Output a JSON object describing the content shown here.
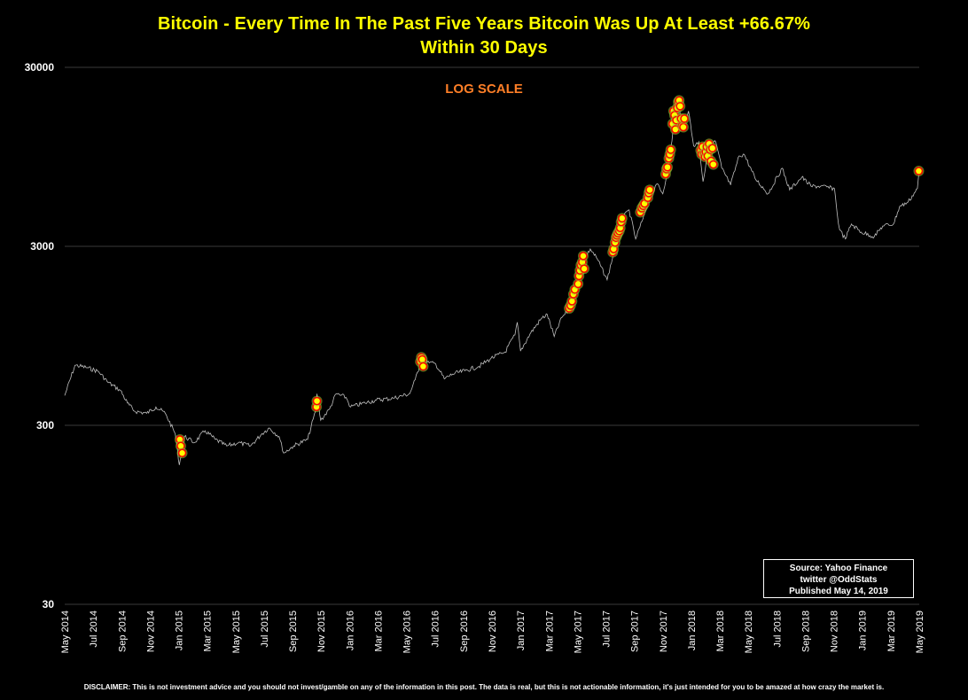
{
  "chart_data": {
    "type": "line",
    "title": "Bitcoin - Every Time In The Past Five Years Bitcoin Was Up At Least +66.67%",
    "subtitle": "Within 30 Days",
    "annotation": "LOG SCALE",
    "y_scale": "log",
    "ylim": [
      30,
      30000
    ],
    "y_ticks": [
      "30000",
      "3000",
      "300",
      "30"
    ],
    "x_ticks": [
      "May 2014",
      "Jul 2014",
      "Sep 2014",
      "Nov 2014",
      "Jan 2015",
      "Mar 2015",
      "May 2015",
      "Jul 2015",
      "Sep 2015",
      "Nov 2015",
      "Jan 2016",
      "Mar 2016",
      "May 2016",
      "Jul 2016",
      "Sep 2016",
      "Nov 2016",
      "Jan 2017",
      "Mar 2017",
      "May 2017",
      "Jul 2017",
      "Sep 2017",
      "Nov 2017",
      "Jan 2018",
      "Mar 2018",
      "May 2018",
      "Jul 2018",
      "Sep 2018",
      "Nov 2018",
      "Jan 2019",
      "Mar 2019",
      "May 2019"
    ],
    "xlim": [
      "2014-05-14",
      "2019-05-14"
    ],
    "grid": "horizontal",
    "colors": {
      "price_line": "#bfbfbf",
      "highlight_fill": "#ffff00",
      "highlight_ring": "#ff0000",
      "highlight_glow": "#9acd32",
      "title": "#ffff00",
      "annotation": "#ff7f27"
    },
    "series": [
      {
        "values": [
          [
            "2014-05-14",
            440
          ],
          [
            "2014-06-05",
            650
          ],
          [
            "2014-07-01",
            630
          ],
          [
            "2014-07-25",
            600
          ],
          [
            "2014-08-15",
            520
          ],
          [
            "2014-09-10",
            470
          ],
          [
            "2014-09-25",
            400
          ],
          [
            "2014-10-10",
            360
          ],
          [
            "2014-11-05",
            350
          ],
          [
            "2014-11-25",
            380
          ],
          [
            "2014-12-15",
            350
          ],
          [
            "2015-01-05",
            270
          ],
          [
            "2015-01-14",
            180
          ],
          [
            "2015-01-25",
            260
          ],
          [
            "2015-02-15",
            240
          ],
          [
            "2015-03-10",
            280
          ],
          [
            "2015-04-01",
            250
          ],
          [
            "2015-04-25",
            230
          ],
          [
            "2015-05-20",
            240
          ],
          [
            "2015-06-15",
            230
          ],
          [
            "2015-07-10",
            270
          ],
          [
            "2015-07-25",
            290
          ],
          [
            "2015-08-15",
            260
          ],
          [
            "2015-08-25",
            210
          ],
          [
            "2015-09-15",
            230
          ],
          [
            "2015-10-15",
            250
          ],
          [
            "2015-11-01",
            360
          ],
          [
            "2015-11-04",
            450
          ],
          [
            "2015-11-12",
            320
          ],
          [
            "2015-12-01",
            370
          ],
          [
            "2015-12-15",
            450
          ],
          [
            "2016-01-05",
            430
          ],
          [
            "2016-01-15",
            380
          ],
          [
            "2016-02-15",
            400
          ],
          [
            "2016-03-10",
            415
          ],
          [
            "2016-04-15",
            425
          ],
          [
            "2016-05-20",
            450
          ],
          [
            "2016-06-01",
            540
          ],
          [
            "2016-06-17",
            730
          ],
          [
            "2016-07-01",
            670
          ],
          [
            "2016-07-15",
            660
          ],
          [
            "2016-08-02",
            545
          ],
          [
            "2016-08-20",
            580
          ],
          [
            "2016-09-15",
            605
          ],
          [
            "2016-10-15",
            640
          ],
          [
            "2016-11-10",
            710
          ],
          [
            "2016-12-10",
            770
          ],
          [
            "2016-12-31",
            960
          ],
          [
            "2017-01-05",
            1130
          ],
          [
            "2017-01-12",
            780
          ],
          [
            "2017-02-01",
            970
          ],
          [
            "2017-02-25",
            1180
          ],
          [
            "2017-03-10",
            1250
          ],
          [
            "2017-03-25",
            940
          ],
          [
            "2017-04-10",
            1200
          ],
          [
            "2017-04-28",
            1350
          ],
          [
            "2017-05-10",
            1750
          ],
          [
            "2017-05-25",
            2450
          ],
          [
            "2017-06-10",
            2900
          ],
          [
            "2017-06-25",
            2550
          ],
          [
            "2017-07-16",
            1950
          ],
          [
            "2017-07-30",
            2750
          ],
          [
            "2017-08-15",
            4200
          ],
          [
            "2017-09-01",
            4800
          ],
          [
            "2017-09-15",
            3300
          ],
          [
            "2017-10-01",
            4300
          ],
          [
            "2017-10-15",
            5600
          ],
          [
            "2017-11-01",
            6700
          ],
          [
            "2017-11-12",
            5900
          ],
          [
            "2017-11-25",
            8700
          ],
          [
            "2017-12-08",
            16000
          ],
          [
            "2017-12-17",
            19300
          ],
          [
            "2017-12-22",
            13500
          ],
          [
            "2018-01-06",
            17100
          ],
          [
            "2018-01-17",
            10900
          ],
          [
            "2018-01-28",
            11500
          ],
          [
            "2018-02-06",
            6900
          ],
          [
            "2018-02-20",
            11200
          ],
          [
            "2018-03-05",
            11500
          ],
          [
            "2018-03-18",
            8200
          ],
          [
            "2018-04-06",
            6600
          ],
          [
            "2018-04-24",
            9600
          ],
          [
            "2018-05-05",
            9800
          ],
          [
            "2018-05-28",
            7200
          ],
          [
            "2018-06-25",
            5900
          ],
          [
            "2018-07-25",
            8200
          ],
          [
            "2018-08-10",
            6200
          ],
          [
            "2018-09-05",
            7300
          ],
          [
            "2018-09-25",
            6500
          ],
          [
            "2018-10-15",
            6500
          ],
          [
            "2018-11-14",
            6300
          ],
          [
            "2018-11-20",
            4500
          ],
          [
            "2018-11-25",
            3700
          ],
          [
            "2018-12-07",
            3300
          ],
          [
            "2018-12-20",
            4000
          ],
          [
            "2019-01-10",
            3600
          ],
          [
            "2019-02-07",
            3400
          ],
          [
            "2019-02-25",
            3900
          ],
          [
            "2019-03-20",
            4000
          ],
          [
            "2019-04-02",
            5000
          ],
          [
            "2019-04-20",
            5300
          ],
          [
            "2019-05-10",
            6300
          ],
          [
            "2019-05-14",
            8000
          ]
        ]
      }
    ],
    "highlight_points": [
      [
        "2015-01-15",
        250
      ],
      [
        "2015-01-17",
        230
      ],
      [
        "2015-01-20",
        210
      ],
      [
        "2015-11-03",
        380
      ],
      [
        "2015-11-04",
        410
      ],
      [
        "2016-06-12",
        680
      ],
      [
        "2016-06-14",
        720
      ],
      [
        "2016-06-16",
        700
      ],
      [
        "2016-06-18",
        640
      ],
      [
        "2017-04-26",
        1350
      ],
      [
        "2017-04-29",
        1400
      ],
      [
        "2017-05-02",
        1480
      ],
      [
        "2017-05-05",
        1620
      ],
      [
        "2017-05-08",
        1720
      ],
      [
        "2017-05-15",
        1850
      ],
      [
        "2017-05-17",
        2050
      ],
      [
        "2017-05-19",
        2200
      ],
      [
        "2017-05-21",
        2350
      ],
      [
        "2017-05-24",
        2450
      ],
      [
        "2017-05-26",
        2650
      ],
      [
        "2017-05-28",
        2250
      ],
      [
        "2017-07-28",
        2780
      ],
      [
        "2017-07-30",
        2900
      ],
      [
        "2017-08-02",
        3150
      ],
      [
        "2017-08-04",
        3350
      ],
      [
        "2017-08-06",
        3450
      ],
      [
        "2017-08-08",
        3550
      ],
      [
        "2017-08-11",
        3650
      ],
      [
        "2017-08-13",
        3800
      ],
      [
        "2017-08-15",
        4100
      ],
      [
        "2017-08-17",
        4300
      ],
      [
        "2017-09-25",
        4650
      ],
      [
        "2017-09-28",
        4900
      ],
      [
        "2017-10-01",
        5050
      ],
      [
        "2017-10-04",
        5200
      ],
      [
        "2017-10-11",
        5600
      ],
      [
        "2017-10-13",
        5950
      ],
      [
        "2017-10-15",
        6200
      ],
      [
        "2017-11-18",
        7600
      ],
      [
        "2017-11-20",
        8100
      ],
      [
        "2017-11-22",
        8300
      ],
      [
        "2017-11-25",
        9300
      ],
      [
        "2017-11-27",
        9800
      ],
      [
        "2017-11-29",
        10400
      ],
      [
        "2017-12-03",
        14500
      ],
      [
        "2017-12-05",
        17100
      ],
      [
        "2017-12-07",
        16200
      ],
      [
        "2017-12-09",
        13500
      ],
      [
        "2017-12-11",
        15200
      ],
      [
        "2017-12-13",
        17800
      ],
      [
        "2017-12-15",
        19200
      ],
      [
        "2017-12-17",
        19600
      ],
      [
        "2017-12-19",
        18200
      ],
      [
        "2017-12-21",
        15500
      ],
      [
        "2017-12-23",
        14100
      ],
      [
        "2017-12-26",
        13900
      ],
      [
        "2017-12-28",
        15500
      ],
      [
        "2018-02-01",
        10300
      ],
      [
        "2018-02-03",
        9800
      ],
      [
        "2018-02-05",
        10800
      ],
      [
        "2018-02-08",
        9900
      ],
      [
        "2018-02-10",
        9500
      ],
      [
        "2018-02-12",
        10100
      ],
      [
        "2018-02-14",
        10800
      ],
      [
        "2018-02-16",
        9600
      ],
      [
        "2018-02-19",
        11200
      ],
      [
        "2018-02-21",
        10400
      ],
      [
        "2018-02-23",
        9000
      ],
      [
        "2018-02-26",
        10600
      ],
      [
        "2018-02-28",
        8600
      ],
      [
        "2019-05-13",
        7900
      ]
    ]
  },
  "source_box": {
    "line1": "Source: Yahoo Finance",
    "line2": "twitter @OddStats",
    "line3": "Published May 14, 2019"
  },
  "disclaimer": "DISCLAIMER: This is not investment advice and you should not invest/gamble on any of the information in this post.   The data is real, but this is not actionable information, it's just intended for you to be amazed at how crazy the market is."
}
